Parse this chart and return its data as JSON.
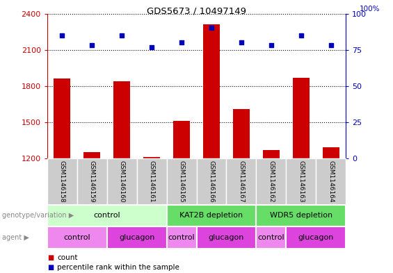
{
  "title": "GDS5673 / 10497149",
  "samples": [
    "GSM1146158",
    "GSM1146159",
    "GSM1146160",
    "GSM1146161",
    "GSM1146165",
    "GSM1146166",
    "GSM1146167",
    "GSM1146162",
    "GSM1146163",
    "GSM1146164"
  ],
  "counts": [
    1860,
    1250,
    1840,
    1210,
    1510,
    2310,
    1610,
    1270,
    1870,
    1290
  ],
  "percentiles": [
    85,
    78,
    85,
    77,
    80,
    90,
    80,
    78,
    85,
    78
  ],
  "ylim_left": [
    1200,
    2400
  ],
  "ylim_right": [
    0,
    100
  ],
  "yticks_left": [
    1200,
    1500,
    1800,
    2100,
    2400
  ],
  "yticks_right": [
    0,
    25,
    50,
    75,
    100
  ],
  "bar_color": "#cc0000",
  "marker_color": "#0000bb",
  "bar_width": 0.55,
  "genotype_groups": [
    {
      "label": "control",
      "start": 0,
      "end": 4,
      "color": "#ccffcc"
    },
    {
      "label": "KAT2B depletion",
      "start": 4,
      "end": 7,
      "color": "#66dd66"
    },
    {
      "label": "WDR5 depletion",
      "start": 7,
      "end": 10,
      "color": "#66dd66"
    }
  ],
  "agent_groups": [
    {
      "label": "control",
      "start": 0,
      "end": 2,
      "color": "#dd44dd"
    },
    {
      "label": "glucagon",
      "start": 2,
      "end": 4,
      "color": "#dd44dd"
    },
    {
      "label": "control",
      "start": 4,
      "end": 5,
      "color": "#dd44dd"
    },
    {
      "label": "glucagon",
      "start": 5,
      "end": 7,
      "color": "#dd44dd"
    },
    {
      "label": "control",
      "start": 7,
      "end": 8,
      "color": "#dd44dd"
    },
    {
      "label": "glucagon",
      "start": 8,
      "end": 10,
      "color": "#dd44dd"
    }
  ],
  "agent_colors": {
    "control": "#ee88ee",
    "glucagon": "#dd44dd"
  },
  "legend_count_label": "count",
  "legend_percentile_label": "percentile rank within the sample",
  "left_axis_color": "#cc0000",
  "right_axis_color": "#0000bb",
  "grid_color": "#000000",
  "cell_bg_color": "#cccccc",
  "geno_border_color": "#ffffff",
  "agent_border_color": "#ffffff"
}
